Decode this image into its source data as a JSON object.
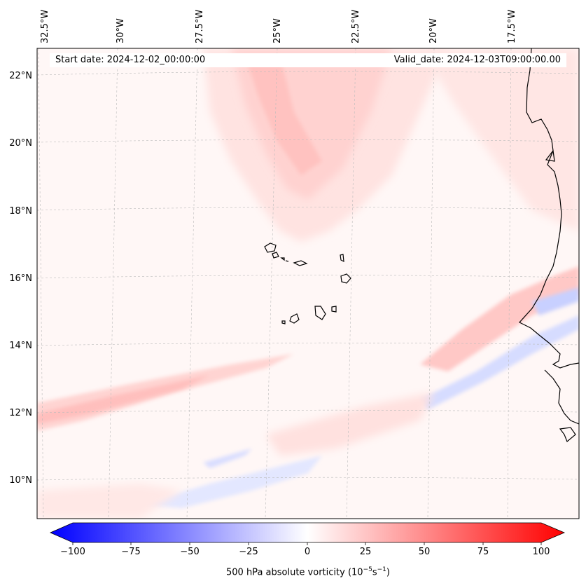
{
  "map": {
    "title_start": "Start date: 2024-12-02_00:00:00",
    "title_valid": "Valid_date: 2024-12-03T09:00:00.00",
    "lon_labels": [
      "32.5°W",
      "30°W",
      "27.5°W",
      "25°W",
      "22.5°W",
      "20°W",
      "17.5°W"
    ],
    "lat_labels": [
      "22°N",
      "20°N",
      "18°N",
      "16°N",
      "14°N",
      "12°N",
      "10°N"
    ],
    "region": "Cabo Verde islands and West African coast",
    "colors": {
      "strong_positive": "#ff0000",
      "strong_negative": "#0000ff",
      "neutral": "#ffffff",
      "coastline": "#000000"
    }
  },
  "colorbar": {
    "ticks": [
      "−100",
      "−75",
      "−50",
      "−25",
      "0",
      "25",
      "50",
      "75",
      "100"
    ],
    "label": "500 hPa absolute vorticity (10",
    "label_exp1": "−5",
    "label_mid": "s",
    "label_exp2": "−1",
    "label_end": ")",
    "min": -100,
    "max": 100
  }
}
